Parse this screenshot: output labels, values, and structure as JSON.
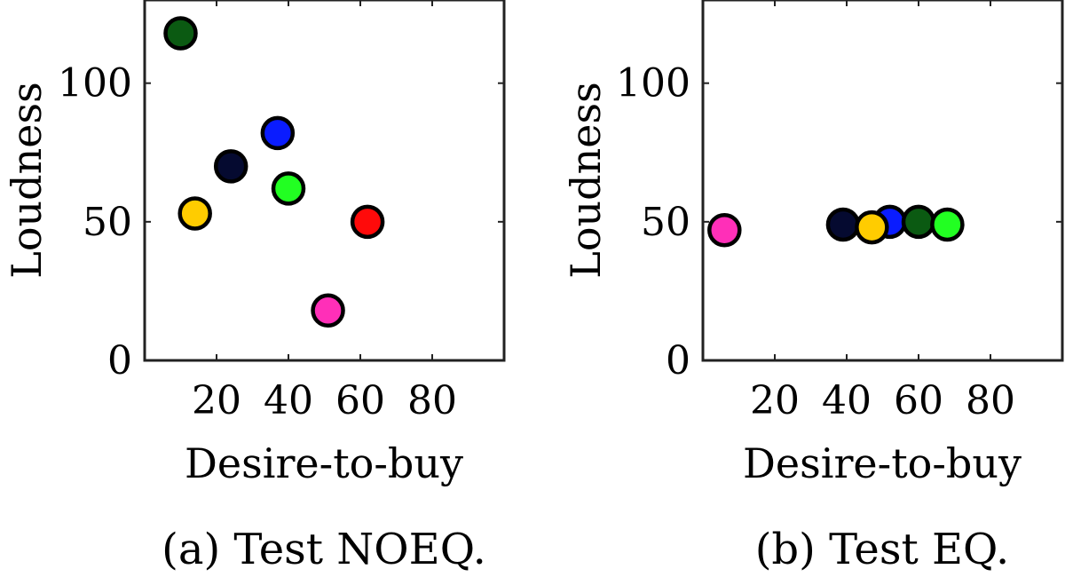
{
  "chart_data": [
    {
      "type": "scatter",
      "caption": "(a) Test NOEQ.",
      "xlabel": "Desire-to-buy",
      "ylabel": "Loudness",
      "xlim": [
        0,
        100
      ],
      "ylim": [
        0,
        130
      ],
      "xticks": [
        20,
        40,
        60,
        80
      ],
      "yticks": [
        0,
        50,
        100
      ],
      "grid": false,
      "points": [
        {
          "x": 10,
          "y": 118,
          "color": "#0b5a12"
        },
        {
          "x": 37,
          "y": 82,
          "color": "#0a1cff"
        },
        {
          "x": 24,
          "y": 70,
          "color": "#050a30"
        },
        {
          "x": 40,
          "y": 62,
          "color": "#22ff22"
        },
        {
          "x": 14,
          "y": 53,
          "color": "#ffcc00"
        },
        {
          "x": 62,
          "y": 50,
          "color": "#ff0a0a"
        },
        {
          "x": 51,
          "y": 18,
          "color": "#ff2fb8"
        }
      ]
    },
    {
      "type": "scatter",
      "caption": "(b) Test EQ.",
      "xlabel": "Desire-to-buy",
      "ylabel": "Loudness",
      "xlim": [
        0,
        100
      ],
      "ylim": [
        0,
        130
      ],
      "xticks": [
        20,
        40,
        60,
        80
      ],
      "yticks": [
        0,
        50,
        100
      ],
      "grid": false,
      "points": [
        {
          "x": 6,
          "y": 47,
          "color": "#ff2fb8"
        },
        {
          "x": 39,
          "y": 49,
          "color": "#050a30"
        },
        {
          "x": 52,
          "y": 50,
          "color": "#0a1cff"
        },
        {
          "x": 60,
          "y": 50,
          "color": "#0b5a12"
        },
        {
          "x": 68,
          "y": 49,
          "color": "#22ff22"
        },
        {
          "x": 47,
          "y": 48,
          "color": "#ffcc00"
        }
      ]
    }
  ]
}
